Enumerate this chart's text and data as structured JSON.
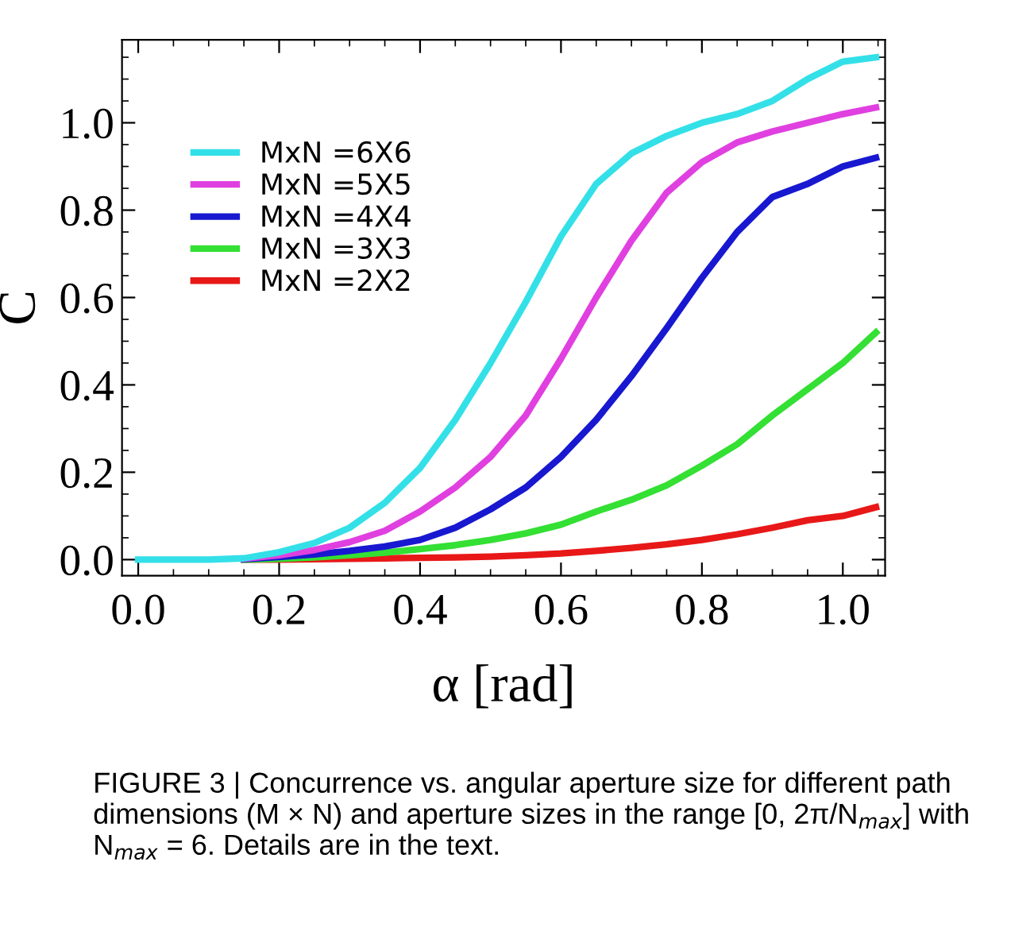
{
  "chart_data": {
    "type": "line",
    "xlabel": "α [rad]",
    "ylabel": "C",
    "xlim": [
      -0.023,
      1.06
    ],
    "ylim": [
      -0.037,
      1.19
    ],
    "xticks": [
      {
        "value": 0,
        "label": "0.0"
      },
      0.2,
      0.4,
      0.6,
      0.8,
      {
        "value": 1,
        "label": "1.0"
      }
    ],
    "yticks": [
      {
        "value": 0,
        "label": "0.0"
      },
      0.2,
      0.4,
      0.6,
      0.8,
      {
        "value": 1,
        "label": "1.0"
      }
    ],
    "grid": false,
    "legend": "top left",
    "line_style": "solid",
    "marker": "none",
    "x": [
      0,
      0.1,
      0.15,
      0.2,
      0.25,
      0.3,
      0.35,
      0.4,
      0.45,
      0.5,
      0.55,
      0.6,
      0.65,
      0.7,
      0.75,
      0.8,
      0.85,
      0.9,
      0.95,
      1.0,
      1.047
    ],
    "series": [
      {
        "name": "MxN =6X6",
        "color": "#33e0e8",
        "values": [
          0,
          0,
          0.003,
          0.017,
          0.038,
          0.073,
          0.13,
          0.21,
          0.32,
          0.45,
          0.59,
          0.74,
          0.86,
          0.93,
          0.97,
          1.0,
          1.02,
          1.05,
          1.1,
          1.14,
          1.15
        ]
      },
      {
        "name": "MxN =5X5",
        "color": "#e040e0",
        "values": [
          null,
          null,
          0.002,
          0.01,
          0.022,
          0.04,
          0.066,
          0.11,
          0.165,
          0.235,
          0.33,
          0.46,
          0.6,
          0.73,
          0.84,
          0.91,
          0.955,
          0.98,
          1.0,
          1.02,
          1.035
        ]
      },
      {
        "name": "MxN =4X4",
        "color": "#1818d0",
        "values": [
          null,
          null,
          0.001,
          0.006,
          0.012,
          0.02,
          0.03,
          0.045,
          0.073,
          0.115,
          0.165,
          0.235,
          0.32,
          0.42,
          0.53,
          0.645,
          0.75,
          0.83,
          0.86,
          0.9,
          0.92
        ]
      },
      {
        "name": "MxN =3X3",
        "color": "#33e033",
        "values": [
          null,
          null,
          0,
          0.002,
          0.005,
          0.01,
          0.016,
          0.024,
          0.033,
          0.045,
          0.06,
          0.08,
          0.11,
          0.137,
          0.17,
          0.215,
          0.264,
          0.33,
          0.39,
          0.45,
          0.52
        ]
      },
      {
        "name": "MxN =2X2",
        "color": "#e81818",
        "values": [
          null,
          null,
          0,
          0,
          0.001,
          0.002,
          0.003,
          0.004,
          0.005,
          0.007,
          0.01,
          0.014,
          0.02,
          0.027,
          0.035,
          0.045,
          0.058,
          0.073,
          0.09,
          0.1,
          0.12
        ]
      }
    ],
    "annotations": [
      "FIGURE 3 | Concurrence vs. angular aperture size for different path dimensions (M × N) and aperture sizes in the range [0, 2π/N$_{max}$] with N$_{max}$ = 6. Details are in the text."
    ]
  }
}
